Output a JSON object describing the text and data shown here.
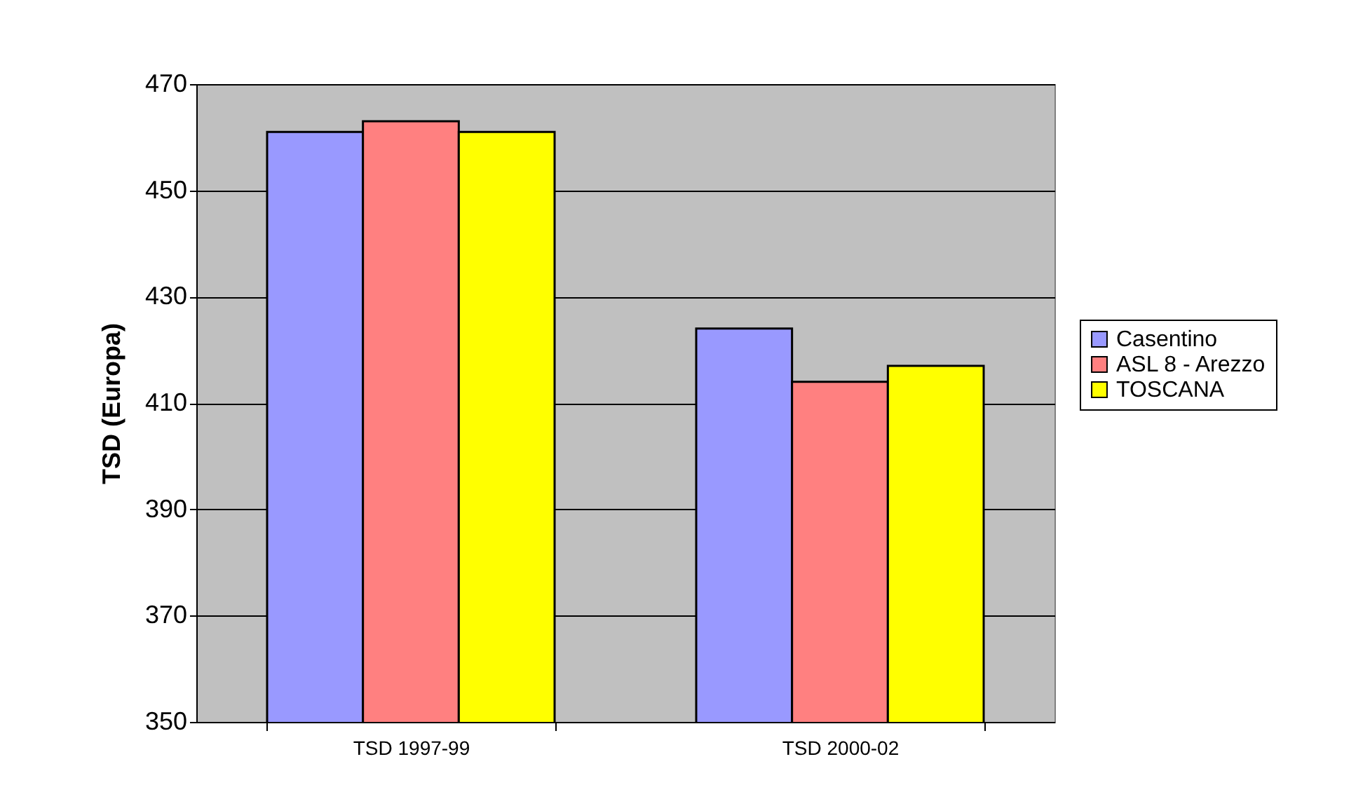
{
  "chart_data": {
    "type": "bar",
    "ylabel": "TSD (Europa)",
    "categories": [
      "TSD 1997-99",
      "TSD 2000-02"
    ],
    "series": [
      {
        "name": "Casentino",
        "color": "#9999ff",
        "values": [
          461,
          424
        ]
      },
      {
        "name": "ASL 8 - Arezzo",
        "color": "#ff8080",
        "values": [
          463,
          414
        ]
      },
      {
        "name": "TOSCANA",
        "color": "#ffff00",
        "values": [
          461,
          417
        ]
      }
    ],
    "ylim": [
      350,
      470
    ],
    "yticks": [
      350,
      370,
      390,
      410,
      430,
      450,
      470
    ],
    "grid": "y",
    "legend": "right"
  }
}
